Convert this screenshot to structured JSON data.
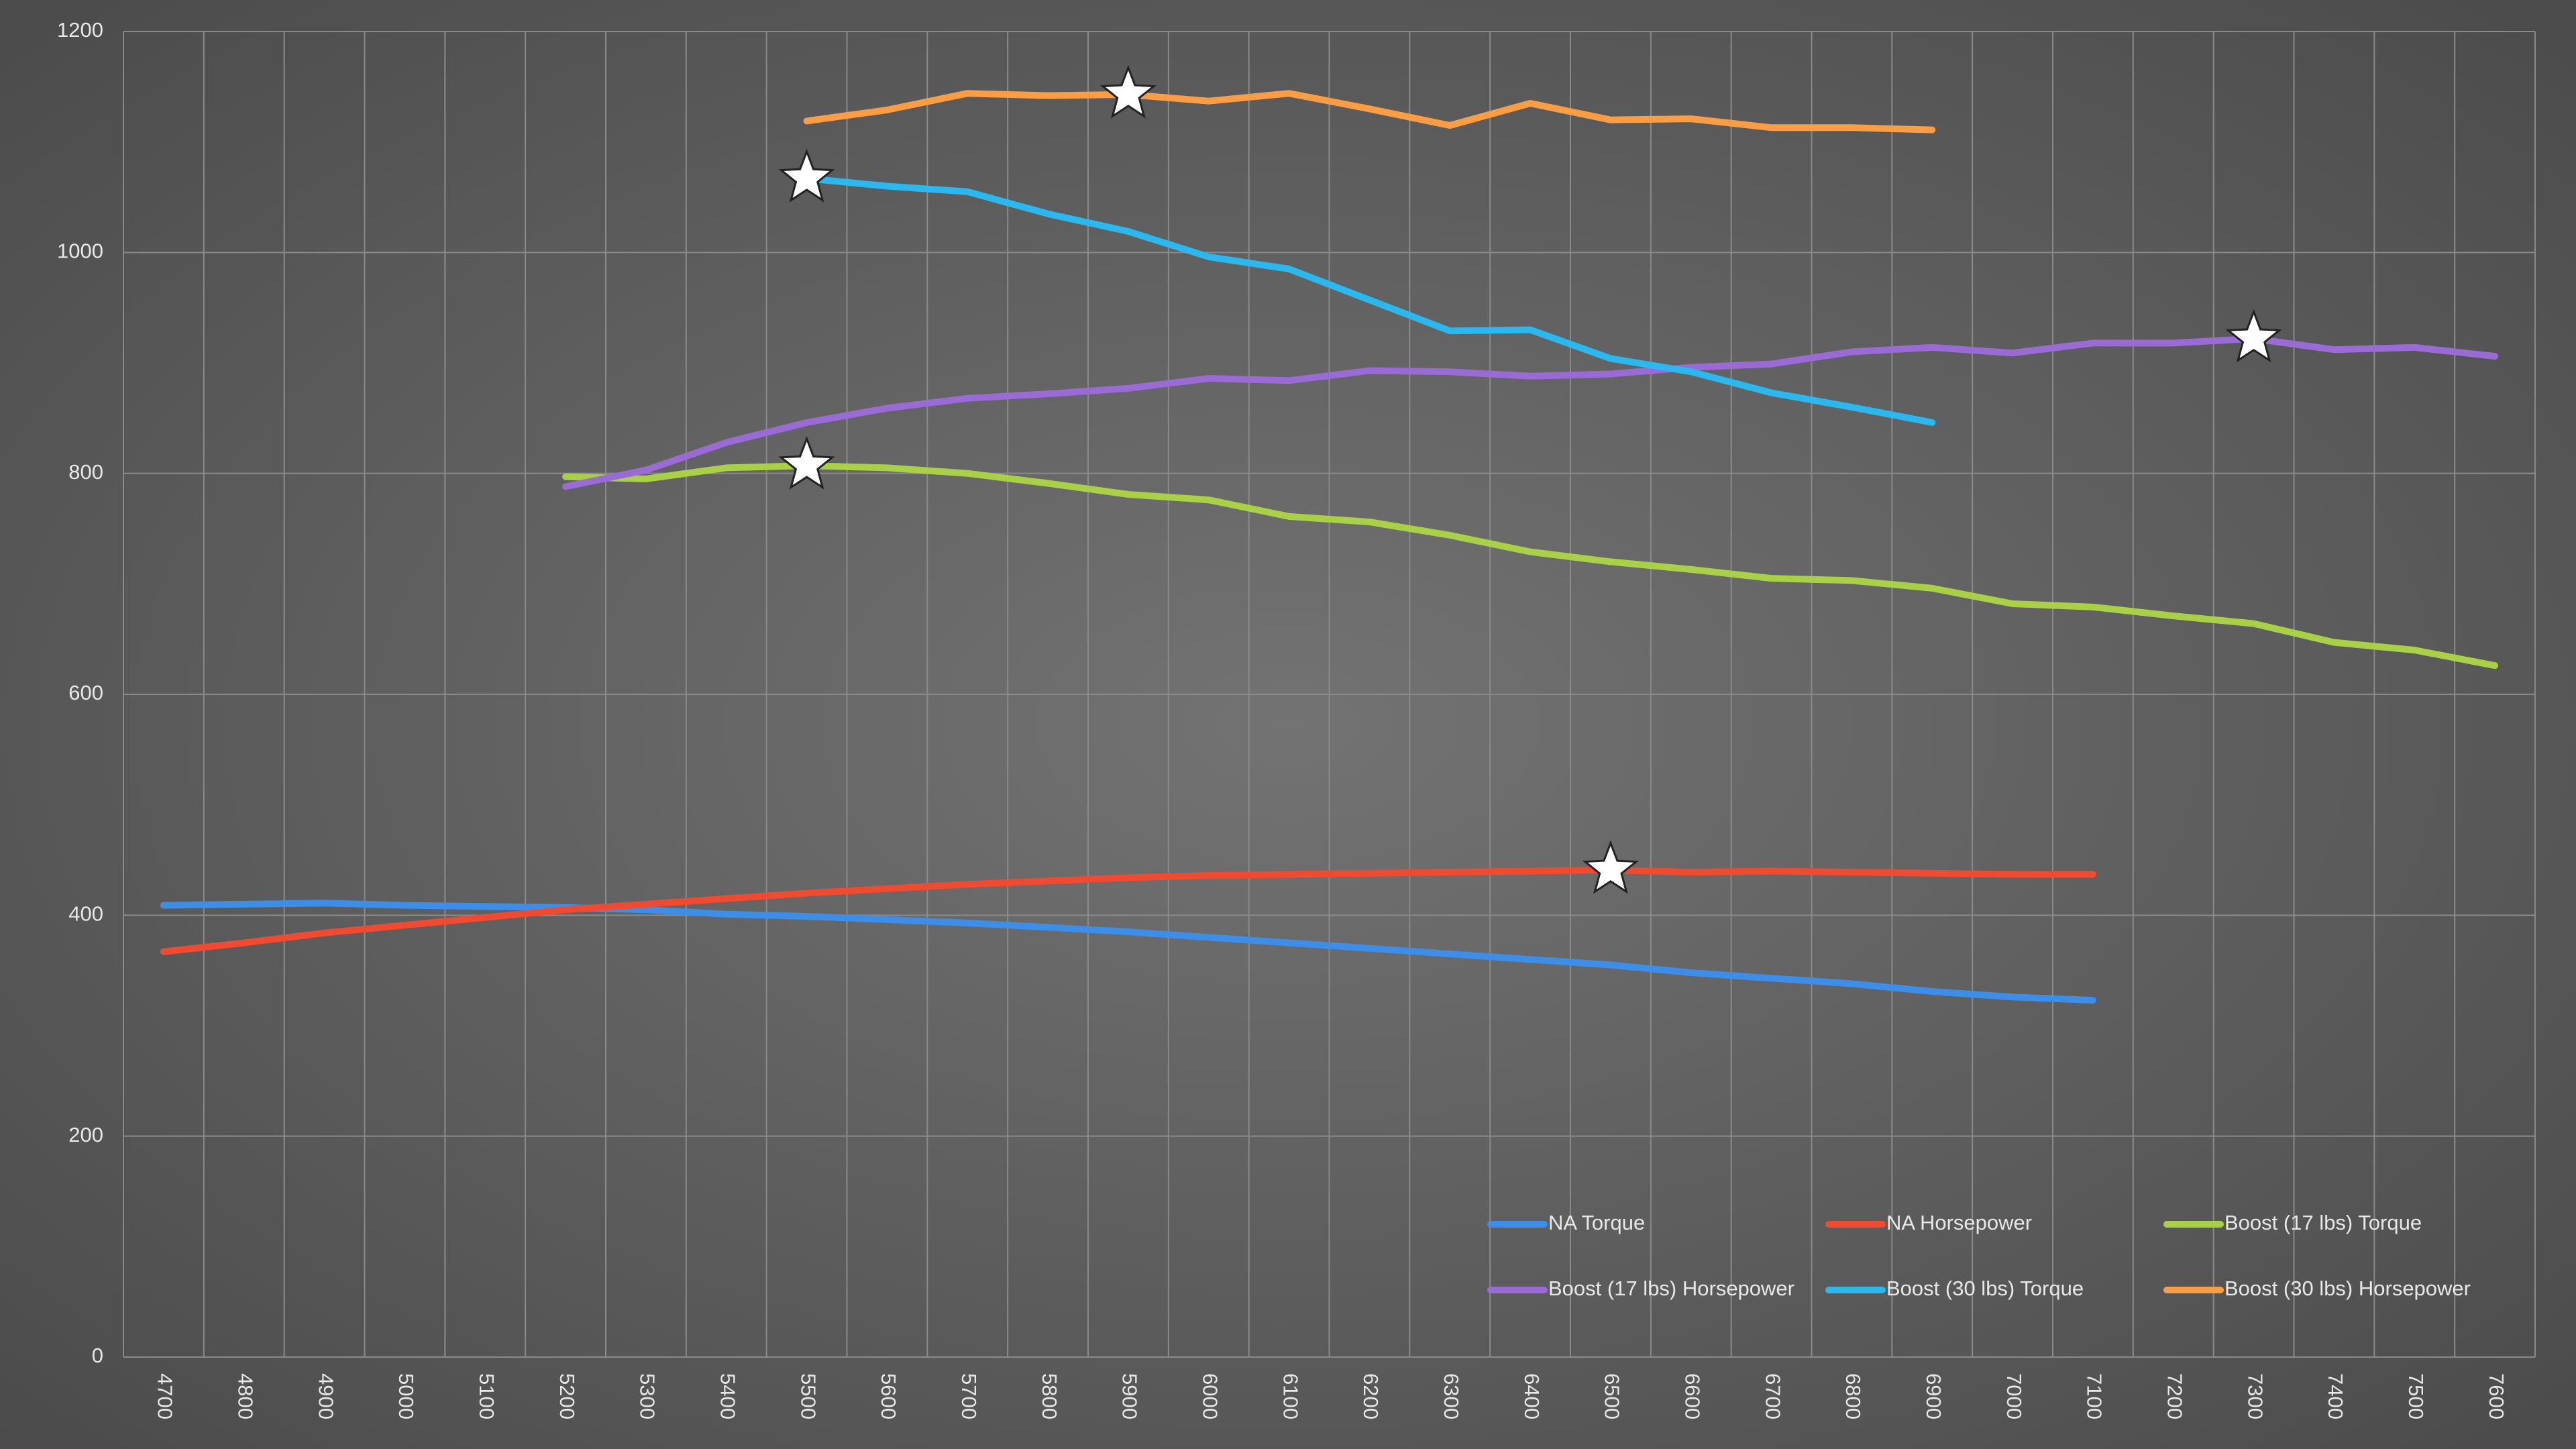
{
  "chart_data": {
    "type": "line",
    "categories": [
      "4700",
      "4800",
      "4900",
      "5000",
      "5100",
      "5200",
      "5300",
      "5400",
      "5500",
      "5600",
      "5700",
      "5800",
      "5900",
      "6000",
      "6100",
      "6200",
      "6300",
      "6400",
      "6500",
      "6600",
      "6700",
      "6800",
      "6900",
      "7000",
      "7100",
      "7200",
      "7300",
      "7400",
      "7500",
      "7600"
    ],
    "series": [
      {
        "name": "NA Torque",
        "color": "#3d8ee8",
        "values": [
          409,
          410,
          411,
          409,
          408,
          407,
          405,
          401,
          399,
          396,
          393,
          389,
          385,
          380,
          375,
          370,
          365,
          360,
          355,
          348,
          343,
          338,
          331,
          326,
          323,
          null,
          null,
          null,
          null,
          null
        ]
      },
      {
        "name": "NA Horsepower",
        "color": "#f04a30",
        "star": 18,
        "values": [
          367,
          375,
          384,
          391,
          398,
          405,
          410,
          415,
          420,
          424,
          428,
          431,
          434,
          436,
          437,
          438,
          439,
          440,
          441,
          439,
          440,
          439,
          438,
          437,
          437,
          null,
          null,
          null,
          null,
          null
        ]
      },
      {
        "name": "Boost (17 lbs) Torque",
        "color": "#a9d046",
        "star": 8,
        "values": [
          null,
          null,
          null,
          null,
          null,
          797,
          795,
          805,
          807,
          805,
          800,
          791,
          781,
          776,
          761,
          756,
          744,
          729,
          720,
          713,
          705,
          703,
          696,
          682,
          679,
          671,
          664,
          647,
          640,
          626
        ]
      },
      {
        "name": "Boost (17 lbs) Horsepower",
        "color": "#9a6bd4",
        "star": 26,
        "values": [
          null,
          null,
          null,
          null,
          null,
          788,
          803,
          828,
          846,
          859,
          868,
          872,
          877,
          886,
          884,
          893,
          892,
          888,
          890,
          896,
          899,
          910,
          914,
          909,
          918,
          918,
          922,
          912,
          914,
          906
        ]
      },
      {
        "name": "Boost (30 lbs) Torque",
        "color": "#2ab8ee",
        "star": 8,
        "values": [
          null,
          null,
          null,
          null,
          null,
          null,
          null,
          null,
          1067,
          1060,
          1055,
          1035,
          1019,
          996,
          985,
          957,
          929,
          930,
          904,
          892,
          873,
          860,
          846,
          null,
          null,
          null,
          null,
          null,
          null,
          null
        ]
      },
      {
        "name": "Boost (30 lbs) Horsepower",
        "color": "#fb9d45",
        "star": 12,
        "values": [
          null,
          null,
          null,
          null,
          null,
          null,
          null,
          null,
          1119,
          1129,
          1144,
          1142,
          1143,
          1137,
          1144,
          1130,
          1115,
          1135,
          1120,
          1121,
          1113,
          1113,
          1111,
          null,
          null,
          null,
          null,
          null,
          null,
          null
        ]
      }
    ],
    "ylim": [
      0,
      1200
    ],
    "yticks": [
      0,
      200,
      400,
      600,
      800,
      1000,
      1200
    ],
    "grid": true,
    "legend": "bottom-right"
  }
}
